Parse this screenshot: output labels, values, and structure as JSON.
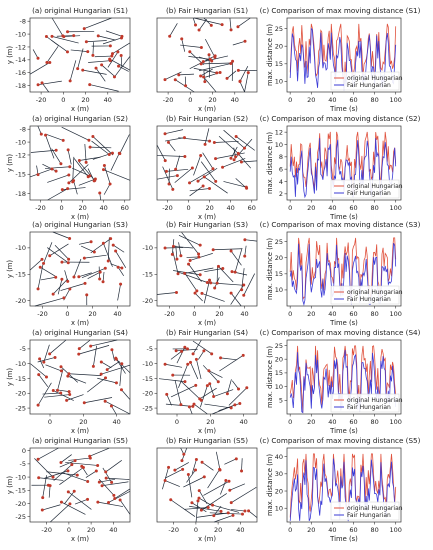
{
  "figure": {
    "background": "#ffffff",
    "line_color": "#1f2937",
    "dot_color": "#c0392b",
    "series_colors": {
      "original": "#e0533f",
      "fair": "#3b3bd6"
    }
  },
  "chart_data": [
    {
      "id": "S1",
      "row": 0,
      "col": 0,
      "type": "scatter",
      "title": "(a) original Hungarian (S1)",
      "xlabel": "x (m)",
      "ylabel": "y (m)",
      "xticks": [
        -20,
        0,
        20,
        40
      ],
      "yticks": [
        -8,
        -10,
        -12,
        -14,
        -16,
        -18
      ],
      "xlim": [
        -30,
        60
      ],
      "ylim": [
        -19,
        -7.5
      ]
    },
    {
      "id": "S1",
      "row": 0,
      "col": 1,
      "type": "scatter",
      "title": "(b) Fair Hungarian (S1)",
      "xlabel": "x (m)",
      "ylabel": "",
      "xticks": [
        -20,
        0,
        20,
        40
      ],
      "yticks": [],
      "xlim": [
        -30,
        60
      ],
      "ylim": [
        -19,
        -7.5
      ]
    },
    {
      "id": "S1",
      "row": 0,
      "col": 2,
      "type": "line",
      "title": "(c) Comparison of max moving distance (S1)",
      "xlabel": "Time (s)",
      "ylabel": "max. distance (m)",
      "xticks": [
        0,
        20,
        40,
        60,
        80,
        100
      ],
      "yticks": [
        10,
        15,
        20,
        25
      ],
      "xlim": [
        -3,
        105
      ],
      "ylim": [
        7,
        28
      ],
      "legend": "bottom-right",
      "series": [
        {
          "name": "original Hungarian",
          "key": "original"
        },
        {
          "name": "Fair Hungarian",
          "key": "fair"
        }
      ]
    },
    {
      "id": "S2",
      "row": 1,
      "col": 0,
      "type": "scatter",
      "title": "(a) original Hungarian (S2)",
      "xlabel": "x (m)",
      "ylabel": "y (m)",
      "xticks": [
        -20,
        0,
        20,
        40,
        60
      ],
      "yticks": [
        -8,
        -10,
        -12,
        -15,
        -18
      ],
      "xlim": [
        -30,
        65
      ],
      "ylim": [
        -19,
        -7.5
      ]
    },
    {
      "id": "S2",
      "row": 1,
      "col": 1,
      "type": "scatter",
      "title": "(b) Fair Hungarian (S2)",
      "xlabel": "x (m)",
      "ylabel": "",
      "xticks": [
        -20,
        0,
        20,
        40,
        60
      ],
      "yticks": [],
      "xlim": [
        -30,
        65
      ],
      "ylim": [
        -19,
        -7.5
      ]
    },
    {
      "id": "S2",
      "row": 1,
      "col": 2,
      "type": "line",
      "title": "(c) Comparison of max moving distance (S2)",
      "xlabel": "Time (s)",
      "ylabel": "max. distance (m)",
      "xticks": [
        0,
        20,
        40,
        60,
        80,
        100
      ],
      "yticks": [
        2,
        4,
        6,
        8,
        10,
        12
      ],
      "xlim": [
        -3,
        105
      ],
      "ylim": [
        1,
        13
      ],
      "legend": "bottom-right",
      "series": [
        {
          "name": "original Hungarian",
          "key": "original"
        },
        {
          "name": "Fair Hungarian",
          "key": "fair"
        }
      ]
    },
    {
      "id": "S3",
      "row": 2,
      "col": 0,
      "type": "scatter",
      "title": "(a) original Hungarian (S3)",
      "xlabel": "x (m)",
      "ylabel": "y (m)",
      "xticks": [
        -20,
        0,
        20,
        40
      ],
      "yticks": [
        -10,
        -15,
        -20
      ],
      "xlim": [
        -30,
        50
      ],
      "ylim": [
        -21,
        -7
      ]
    },
    {
      "id": "S3",
      "row": 2,
      "col": 1,
      "type": "scatter",
      "title": "(b) Fair Hungarian (S3)",
      "xlabel": "x (m)",
      "ylabel": "",
      "xticks": [
        -20,
        0,
        20,
        40
      ],
      "yticks": [
        "-10",
        "-15",
        "-20"
      ],
      "xlim": [
        -30,
        50
      ],
      "ylim": [
        -21,
        -7
      ]
    },
    {
      "id": "S3",
      "row": 2,
      "col": 2,
      "type": "line",
      "title": "(c) Comparison of max moving distance (S3)",
      "xlabel": "Time (s)",
      "ylabel": "max. distance (m)",
      "xticks": [
        0,
        20,
        40,
        60,
        80,
        100
      ],
      "yticks": [
        10,
        15,
        20,
        25
      ],
      "xlim": [
        -3,
        105
      ],
      "ylim": [
        5,
        28
      ],
      "legend": "bottom-right",
      "series": [
        {
          "name": "original Hungarian",
          "key": "original"
        },
        {
          "name": "Fair Hungarian",
          "key": "fair"
        }
      ]
    },
    {
      "id": "S4",
      "row": 3,
      "col": 0,
      "type": "scatter",
      "title": "(a) original Hungarian (S4)",
      "xlabel": "x (m)",
      "ylabel": "y (m)",
      "xticks": [
        0,
        20,
        40
      ],
      "yticks": [
        -5,
        -10,
        -15,
        -20,
        -25
      ],
      "xlim": [
        -12,
        48
      ],
      "ylim": [
        -27,
        -2
      ]
    },
    {
      "id": "S4",
      "row": 3,
      "col": 1,
      "type": "scatter",
      "title": "(b) Fair Hungarian (S4)",
      "xlabel": "x (m)",
      "ylabel": "",
      "xticks": [
        0,
        20,
        40
      ],
      "yticks": [
        -5,
        -10,
        -15,
        -20,
        -25
      ],
      "xlim": [
        -12,
        48
      ],
      "ylim": [
        -27,
        -2
      ]
    },
    {
      "id": "S4",
      "row": 3,
      "col": 2,
      "type": "line",
      "title": "(c) Comparison of max moving distance (S4)",
      "xlabel": "Time (s)",
      "ylabel": "max. distance (m)",
      "xticks": [
        0,
        20,
        40,
        60,
        80,
        100
      ],
      "yticks": [
        5,
        10,
        15,
        20,
        25
      ],
      "xlim": [
        -3,
        105
      ],
      "ylim": [
        0,
        27
      ],
      "legend": "bottom-right",
      "series": [
        {
          "name": "original Hungarian",
          "key": "original"
        },
        {
          "name": "Fair Hungarian",
          "key": "fair"
        }
      ]
    },
    {
      "id": "S5",
      "row": 4,
      "col": 0,
      "type": "scatter",
      "title": "(a) original Hungarian (S5)",
      "xlabel": "x (m)",
      "ylabel": "y (m)",
      "xticks": [
        -20,
        0,
        20,
        40
      ],
      "yticks": [
        0,
        -5,
        -10,
        -15,
        -20,
        -25
      ],
      "xlim": [
        -35,
        55
      ],
      "ylim": [
        -27,
        1
      ]
    },
    {
      "id": "S5",
      "row": 4,
      "col": 1,
      "type": "scatter",
      "title": "(b) Fair Hungarian (S5)",
      "xlabel": "x (m)",
      "ylabel": "",
      "xticks": [
        -20,
        0,
        20,
        40
      ],
      "yticks": [],
      "xlim": [
        -35,
        55
      ],
      "ylim": [
        -27,
        1
      ]
    },
    {
      "id": "S5",
      "row": 4,
      "col": 2,
      "type": "line",
      "title": "(c) Comparison of max moving distance (S5)",
      "xlabel": "Time (s)",
      "ylabel": "max. distance (m)",
      "xticks": [
        0,
        20,
        40,
        60,
        80,
        100
      ],
      "yticks": [
        10,
        20,
        30,
        40
      ],
      "xlim": [
        -3,
        105
      ],
      "ylim": [
        2,
        45
      ],
      "legend": "bottom-right",
      "series": [
        {
          "name": "original Hungarian",
          "key": "original"
        },
        {
          "name": "Fair Hungarian",
          "key": "fair"
        }
      ]
    }
  ]
}
